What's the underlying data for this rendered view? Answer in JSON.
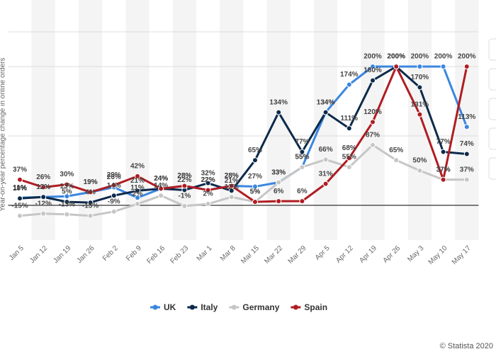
{
  "chart_data": {
    "type": "line",
    "y_axis_label": "Year-on-year percentage change in online orders",
    "categories": [
      "Jan 5",
      "Jan 12",
      "Jan 19",
      "Jan 26",
      "Feb 2",
      "Feb 9",
      "Feb 16",
      "Feb 23",
      "Mar 1",
      "Mar 8",
      "Mar 15",
      "Mar 22",
      "Mar 29",
      "Apr 5",
      "Apr 12",
      "Apr 19",
      "Apr 26",
      "May 3",
      "May 10",
      "May 17"
    ],
    "series": [
      {
        "name": "UK",
        "color": "#3a86e0",
        "values": [
          11,
          12,
          13,
          19,
          26,
          11,
          24,
          28,
          22,
          28,
          27,
          33,
          55,
          134,
          174,
          200,
          200,
          200,
          200,
          113
        ],
        "value_labels": [
          "11%",
          "12%",
          "13%",
          "19%",
          "26%",
          "11%",
          "24%",
          "28%",
          "22%",
          "28%",
          "27%",
          "33%",
          "55%",
          "134%",
          "174%",
          "200%",
          "200%",
          "200%",
          "200%",
          "113%"
        ]
      },
      {
        "name": "Italy",
        "color": "#0d2a4b",
        "values": [
          10,
          12,
          5,
          4,
          14,
          21,
          24,
          22,
          32,
          21,
          65,
          134,
          77,
          134,
          111,
          180,
          200,
          170,
          77,
          74
        ],
        "value_labels": [
          "10%",
          "12%",
          "5%",
          "4%",
          "14%",
          "21%",
          "24%",
          "22%",
          "32%",
          "21%",
          "65%",
          "134%",
          "77%",
          "134%",
          "111%",
          "180%",
          "200%",
          "170%",
          "77%",
          "74%"
        ]
      },
      {
        "name": "Germany",
        "color": "#c6c6c6",
        "values": [
          -15,
          -12,
          -13,
          -15,
          -9,
          2,
          14,
          -1,
          2,
          12,
          5,
          33,
          55,
          66,
          55,
          87,
          65,
          50,
          37,
          37
        ],
        "value_labels": [
          "-15%",
          "-12%",
          "-13%",
          "-15%",
          "-9%",
          "2%",
          "14%",
          "-1%",
          "2%",
          "12%",
          "5%",
          "33%",
          "55%",
          "66%",
          "55%",
          "87%",
          "65%",
          "50%",
          "37%",
          "37%"
        ]
      },
      {
        "name": "Spain",
        "color": "#b01c22",
        "values": [
          37,
          26,
          30,
          19,
          29,
          42,
          24,
          28,
          22,
          28,
          5,
          6,
          6,
          31,
          68,
          120,
          200,
          131,
          37,
          200
        ],
        "value_labels": [
          "37%",
          "26%",
          "30%",
          "19%",
          "29%",
          "42%",
          "24%",
          "28%",
          "22%",
          "28%",
          "5%",
          "6%",
          "6%",
          "31%",
          "68%",
          "120%",
          "200%",
          "131%",
          "37%",
          "200%"
        ]
      }
    ],
    "ylim": [
      -50,
      250
    ],
    "yticks": [
      0,
      100,
      200,
      250
    ],
    "grid": true,
    "legend": "bottom",
    "source": "© Statista 2020"
  }
}
